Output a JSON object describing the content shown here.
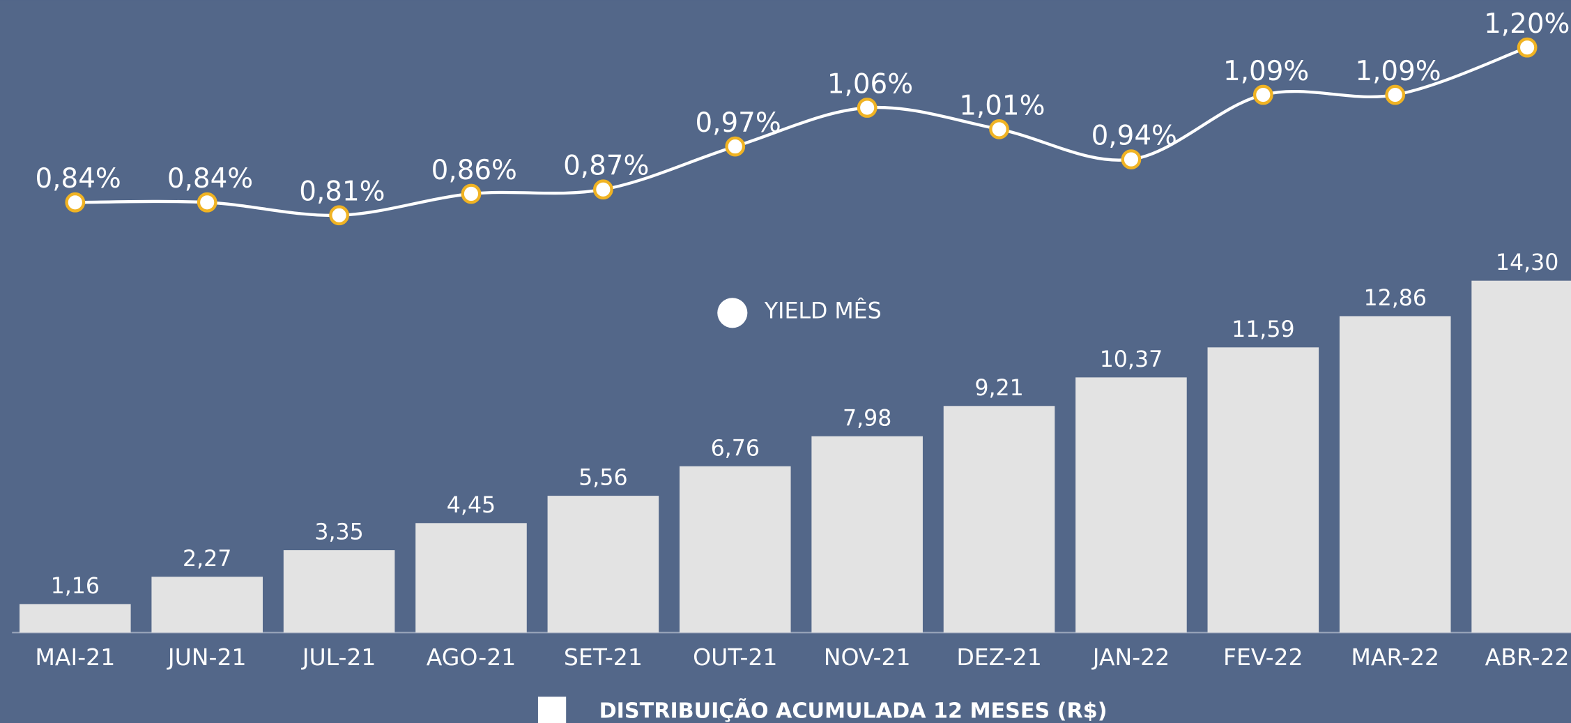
{
  "chart_data": {
    "type": "bar",
    "categories": [
      "MAI-21",
      "JUN-21",
      "JUL-21",
      "AGO-21",
      "SET-21",
      "OUT-21",
      "NOV-21",
      "DEZ-21",
      "JAN-22",
      "FEV-22",
      "MAR-22",
      "ABR-22"
    ],
    "series": [
      {
        "name": "DISTRIBUIÇÃO ACUMULADA 12 MESES (R$)",
        "type": "bar",
        "color": "#e3e3e3",
        "values": [
          1.16,
          2.27,
          3.35,
          4.45,
          5.56,
          6.76,
          7.98,
          9.21,
          10.37,
          11.59,
          12.86,
          14.3
        ],
        "value_labels": [
          "1,16",
          "2,27",
          "3,35",
          "4,45",
          "5,56",
          "6,76",
          "7,98",
          "9,21",
          "10,37",
          "11,59",
          "12,86",
          "14,30"
        ]
      },
      {
        "name": "YIELD MÊS",
        "type": "line",
        "axis": "y2",
        "color": "#ffffff",
        "marker_color": "#f0b323",
        "values": [
          0.84,
          0.84,
          0.81,
          0.86,
          0.87,
          0.97,
          1.06,
          1.01,
          0.94,
          1.09,
          1.09,
          1.2
        ],
        "value_labels": [
          "0,84%",
          "0,84%",
          "0,81%",
          "0,86%",
          "0,87%",
          "0,97%",
          "1,06%",
          "1,01%",
          "0,94%",
          "1,09%",
          "1,09%",
          "1,20%"
        ]
      }
    ],
    "ylim": [
      0,
      25.7
    ],
    "y2lim": [
      -0.16,
      1.31
    ]
  }
}
